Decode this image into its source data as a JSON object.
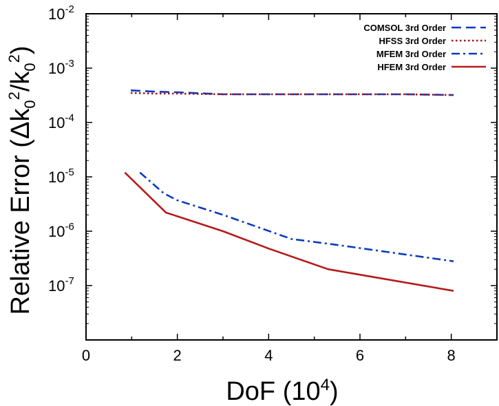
{
  "chart_data": {
    "type": "line",
    "xlabel_main": "DoF (10",
    "xlabel_sup": "4",
    "xlabel_close": ")",
    "ylabel_parts": [
      "Relative Error (Δk",
      "0",
      "2",
      "/k",
      "0",
      "2",
      ")"
    ],
    "xlim": [
      0,
      9
    ],
    "ylim_log10": [
      -8,
      -2
    ],
    "yscale": "log",
    "x_ticks": [
      0,
      2,
      4,
      6,
      8
    ],
    "x_tick_labels": [
      "0",
      "2",
      "4",
      "6",
      "8"
    ],
    "y_ticks_exp": [
      -7,
      -6,
      -5,
      -4,
      -3,
      -2
    ],
    "y_tick_base": "10",
    "y_tick_exps": [
      "-7",
      "-6",
      "-5",
      "-4",
      "-3",
      "-2"
    ],
    "legend_position": "top-right",
    "series": [
      {
        "name": "COMSOL 3rd Order",
        "color": "#0a3bbf",
        "style": "dashed",
        "x": [
          0.98,
          1.5,
          2.0,
          3.0,
          4.0,
          5.0,
          6.0,
          7.0,
          8.05
        ],
        "y": [
          0.00039,
          0.00037,
          0.00036,
          0.00033,
          0.00033,
          0.00033,
          0.00033,
          0.00033,
          0.00032
        ]
      },
      {
        "name": "HFSS 3rd Order",
        "color": "#a01616",
        "style": "dotted",
        "x": [
          0.98,
          1.5,
          2.0,
          3.0,
          4.0,
          5.0,
          6.0,
          7.0,
          8.05
        ],
        "y": [
          0.00035,
          0.00034,
          0.00034,
          0.00033,
          0.00033,
          0.00033,
          0.00033,
          0.00033,
          0.00032
        ]
      },
      {
        "name": "MFEM 3rd Order",
        "color": "#0a3bbf",
        "style": "dashdot",
        "x": [
          1.18,
          1.7,
          2.0,
          3.0,
          4.5,
          5.5,
          8.05
        ],
        "y": [
          1.2e-05,
          5e-06,
          3.7e-06,
          2e-06,
          7.2e-07,
          5.6e-07,
          2.8e-07
        ]
      },
      {
        "name": "HFEM 3rd Order",
        "color": "#b51a1a",
        "style": "solid",
        "x": [
          0.85,
          1.75,
          3.0,
          4.0,
          5.3,
          8.05
        ],
        "y": [
          1.2e-05,
          2.2e-06,
          1e-06,
          4.8e-07,
          2e-07,
          8e-08
        ]
      }
    ]
  }
}
